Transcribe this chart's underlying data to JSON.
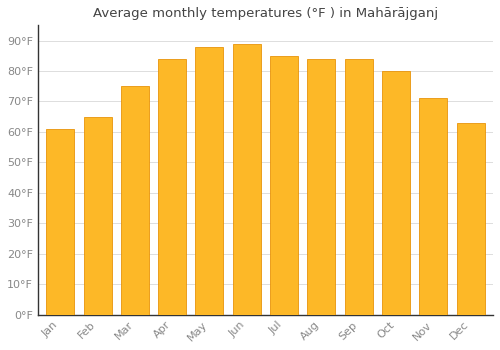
{
  "title": "Average monthly temperatures (°F ) in Mahārājganj",
  "months": [
    "Jan",
    "Feb",
    "Mar",
    "Apr",
    "May",
    "Jun",
    "Jul",
    "Aug",
    "Sep",
    "Oct",
    "Nov",
    "Dec"
  ],
  "values": [
    61,
    65,
    75,
    84,
    88,
    89,
    85,
    84,
    84,
    80,
    71,
    63
  ],
  "bar_color": "#FDB827",
  "bar_edge_color": "#E8940A",
  "background_color": "#FFFFFF",
  "grid_color": "#DDDDDD",
  "ylim": [
    0,
    95
  ],
  "yticks": [
    0,
    10,
    20,
    30,
    40,
    50,
    60,
    70,
    80,
    90
  ],
  "title_fontsize": 9.5,
  "tick_fontsize": 8,
  "title_color": "#444444",
  "tick_color": "#888888",
  "axis_color": "#333333",
  "bar_width": 0.75
}
